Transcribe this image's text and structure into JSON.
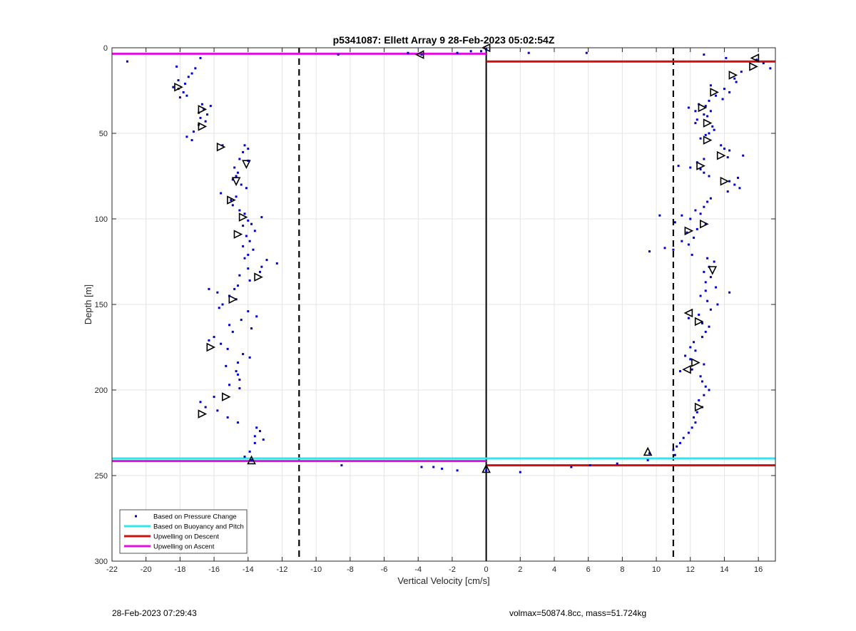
{
  "chart_data": {
    "type": "scatter",
    "title": "p5341087: Ellett Array 9 28-Feb-2023 05:02:54Z",
    "xlabel": "Vertical Velocity [cm/s]",
    "ylabel": "Depth [m]",
    "xlim": [
      -22,
      17
    ],
    "ylim": [
      0,
      300
    ],
    "y_reversed": true,
    "grid": true,
    "xticks": [
      -22,
      -20,
      -18,
      -16,
      -14,
      -12,
      -10,
      -8,
      -6,
      -4,
      -2,
      0,
      2,
      4,
      6,
      8,
      10,
      12,
      14,
      16
    ],
    "yticks": [
      0,
      50,
      100,
      150,
      200,
      250,
      300
    ],
    "legend_position": "bottom-left",
    "legend": [
      {
        "label": "Based on Pressure Change",
        "style": "dots",
        "color": "#0000cc"
      },
      {
        "label": "Based on Buoyancy and Pitch",
        "style": "line",
        "color": "#2ee6ec"
      },
      {
        "label": "Upwelling on Descent",
        "style": "line",
        "color": "#cc1111"
      },
      {
        "label": "Upwelling on Ascent",
        "style": "line",
        "color": "#e010e0"
      }
    ],
    "reference_lines": [
      {
        "x": -11,
        "style": "dashed",
        "color": "#000000"
      },
      {
        "x": 0,
        "style": "solid",
        "color": "#000000"
      },
      {
        "x": 11,
        "style": "dashed",
        "color": "#000000"
      }
    ],
    "series": [
      {
        "name": "Based on Buoyancy and Pitch",
        "kind": "hline",
        "color": "#2ee6ec",
        "segments": [
          {
            "y": 240,
            "x": [
              -22,
              17
            ]
          }
        ]
      },
      {
        "name": "Upwelling on Descent",
        "kind": "hline",
        "color": "#cc1111",
        "segments": [
          {
            "y": 8,
            "x": [
              0,
              17
            ]
          },
          {
            "y": 244,
            "x": [
              0,
              17
            ]
          }
        ]
      },
      {
        "name": "Upwelling on Ascent",
        "kind": "hline",
        "color": "#e010e0",
        "segments": [
          {
            "y": 3.5,
            "x": [
              -22,
              0
            ]
          },
          {
            "y": 241.5,
            "x": [
              -22,
              0
            ]
          }
        ]
      },
      {
        "name": "Based on Pressure Change",
        "kind": "points",
        "color": "#0000cc",
        "points": [
          [
            -21.1,
            8
          ],
          [
            -16.8,
            6
          ],
          [
            -18.2,
            11
          ],
          [
            -17.1,
            12
          ],
          [
            -17.3,
            15
          ],
          [
            -17.5,
            17
          ],
          [
            -18.1,
            19
          ],
          [
            -17.7,
            21
          ],
          [
            -18.4,
            23
          ],
          [
            -18.1,
            24
          ],
          [
            -17.8,
            26
          ],
          [
            -17.6,
            28
          ],
          [
            -18.0,
            29
          ],
          [
            -16.7,
            33
          ],
          [
            -16.2,
            34
          ],
          [
            -16.6,
            36
          ],
          [
            -16.9,
            38
          ],
          [
            -16.4,
            39
          ],
          [
            -16.8,
            41
          ],
          [
            -16.5,
            43
          ],
          [
            -16.9,
            45
          ],
          [
            -17.2,
            49
          ],
          [
            -17.6,
            52
          ],
          [
            -17.3,
            54
          ],
          [
            -15.5,
            57
          ],
          [
            -14.2,
            57
          ],
          [
            -14.0,
            59
          ],
          [
            -14.3,
            61
          ],
          [
            -14.5,
            65
          ],
          [
            -14.0,
            66
          ],
          [
            -14.8,
            70
          ],
          [
            -14.6,
            73
          ],
          [
            -14.7,
            75
          ],
          [
            -14.9,
            77
          ],
          [
            -14.4,
            80
          ],
          [
            -14.1,
            82
          ],
          [
            -15.6,
            85
          ],
          [
            -14.7,
            87
          ],
          [
            -15.0,
            89
          ],
          [
            -14.9,
            92
          ],
          [
            -14.5,
            95
          ],
          [
            -14.2,
            97
          ],
          [
            -13.2,
            99
          ],
          [
            -14.0,
            101
          ],
          [
            -13.8,
            103
          ],
          [
            -14.3,
            104
          ],
          [
            -13.6,
            107
          ],
          [
            -14.1,
            110
          ],
          [
            -13.9,
            113
          ],
          [
            -14.3,
            116
          ],
          [
            -13.7,
            118
          ],
          [
            -14.0,
            121
          ],
          [
            -14.2,
            123
          ],
          [
            -12.9,
            124
          ],
          [
            -12.3,
            126
          ],
          [
            -13.2,
            128
          ],
          [
            -14.0,
            129
          ],
          [
            -13.3,
            131
          ],
          [
            -14.5,
            133
          ],
          [
            -13.9,
            136
          ],
          [
            -14.6,
            139
          ],
          [
            -14.8,
            141
          ],
          [
            -16.3,
            141
          ],
          [
            -15.8,
            143
          ],
          [
            -15.1,
            145
          ],
          [
            -14.7,
            147
          ],
          [
            -15.5,
            150
          ],
          [
            -15.7,
            152
          ],
          [
            -14.0,
            154
          ],
          [
            -13.5,
            157
          ],
          [
            -14.4,
            159
          ],
          [
            -15.1,
            162
          ],
          [
            -13.8,
            164
          ],
          [
            -14.9,
            166
          ],
          [
            -16.0,
            169
          ],
          [
            -16.3,
            171
          ],
          [
            -15.6,
            173
          ],
          [
            -15.2,
            176
          ],
          [
            -14.3,
            179
          ],
          [
            -13.9,
            181
          ],
          [
            -14.6,
            184
          ],
          [
            -15.3,
            186
          ],
          [
            -14.7,
            189
          ],
          [
            -14.6,
            191
          ],
          [
            -14.5,
            194
          ],
          [
            -15.1,
            197
          ],
          [
            -14.5,
            199
          ],
          [
            -16.0,
            204
          ],
          [
            -16.8,
            207
          ],
          [
            -16.5,
            210
          ],
          [
            -15.8,
            212
          ],
          [
            -15.2,
            216
          ],
          [
            -14.6,
            219
          ],
          [
            -13.5,
            222
          ],
          [
            -13.3,
            224
          ],
          [
            -13.6,
            227
          ],
          [
            -13.1,
            229
          ],
          [
            -13.6,
            231
          ],
          [
            -13.9,
            236
          ],
          [
            -14.2,
            239
          ],
          [
            -13.8,
            241
          ],
          [
            -8.7,
            4
          ],
          [
            -4.6,
            3
          ],
          [
            -3.8,
            4
          ],
          [
            -1.7,
            3
          ],
          [
            -0.9,
            2
          ],
          [
            -0.3,
            2
          ],
          [
            0,
            1
          ],
          [
            2.5,
            3
          ],
          [
            5.9,
            3
          ],
          [
            -8.5,
            244
          ],
          [
            -3.8,
            245
          ],
          [
            -3.1,
            245
          ],
          [
            -2.6,
            246
          ],
          [
            -1.7,
            247
          ],
          [
            0.0,
            247
          ],
          [
            2.0,
            248
          ],
          [
            5.0,
            245
          ],
          [
            6.1,
            244
          ],
          [
            7.7,
            243
          ],
          [
            9.5,
            241
          ],
          [
            12.8,
            4
          ],
          [
            14.1,
            6
          ],
          [
            15.9,
            7
          ],
          [
            16.3,
            9
          ],
          [
            16.7,
            12
          ],
          [
            15.0,
            14
          ],
          [
            14.6,
            18
          ],
          [
            14.7,
            20
          ],
          [
            13.2,
            22
          ],
          [
            14.0,
            24
          ],
          [
            14.3,
            26
          ],
          [
            13.5,
            28
          ],
          [
            13.9,
            30
          ],
          [
            13.1,
            31
          ],
          [
            12.5,
            33
          ],
          [
            12.9,
            34
          ],
          [
            11.9,
            35
          ],
          [
            12.3,
            37
          ],
          [
            13.2,
            37
          ],
          [
            12.8,
            39
          ],
          [
            13.0,
            40
          ],
          [
            12.4,
            42
          ],
          [
            12.3,
            44
          ],
          [
            13.3,
            46
          ],
          [
            13.4,
            48
          ],
          [
            13.1,
            50
          ],
          [
            12.9,
            51
          ],
          [
            12.6,
            53
          ],
          [
            13.8,
            57
          ],
          [
            14.0,
            59
          ],
          [
            14.3,
            60
          ],
          [
            15.1,
            63
          ],
          [
            14.2,
            64
          ],
          [
            12.8,
            65
          ],
          [
            12.4,
            67
          ],
          [
            11.3,
            69
          ],
          [
            12.0,
            70
          ],
          [
            12.6,
            71
          ],
          [
            12.8,
            73
          ],
          [
            13.1,
            75
          ],
          [
            14.8,
            76
          ],
          [
            14.3,
            78
          ],
          [
            14.6,
            80
          ],
          [
            14.9,
            82
          ],
          [
            14.2,
            84
          ],
          [
            13.2,
            88
          ],
          [
            13.0,
            90
          ],
          [
            12.8,
            93
          ],
          [
            12.3,
            95
          ],
          [
            12.6,
            97
          ],
          [
            10.2,
            98
          ],
          [
            11.5,
            98
          ],
          [
            12.0,
            100
          ],
          [
            11.1,
            102
          ],
          [
            12.9,
            103
          ],
          [
            12.4,
            106
          ],
          [
            11.8,
            108
          ],
          [
            12.2,
            111
          ],
          [
            11.5,
            113
          ],
          [
            11.9,
            115
          ],
          [
            10.5,
            117
          ],
          [
            11.0,
            118
          ],
          [
            9.6,
            119
          ],
          [
            12.1,
            121
          ],
          [
            13.0,
            123
          ],
          [
            13.4,
            125
          ],
          [
            13.1,
            128
          ],
          [
            12.8,
            131
          ],
          [
            13.2,
            134
          ],
          [
            12.9,
            137
          ],
          [
            13.5,
            140
          ],
          [
            12.9,
            142
          ],
          [
            14.3,
            143
          ],
          [
            12.6,
            145
          ],
          [
            13.0,
            148
          ],
          [
            13.6,
            150
          ],
          [
            13.2,
            153
          ],
          [
            12.5,
            156
          ],
          [
            11.9,
            158
          ],
          [
            12.7,
            161
          ],
          [
            13.1,
            163
          ],
          [
            12.9,
            166
          ],
          [
            12.7,
            169
          ],
          [
            12.2,
            172
          ],
          [
            12.0,
            175
          ],
          [
            12.3,
            177
          ],
          [
            11.7,
            180
          ],
          [
            12.0,
            182
          ],
          [
            12.8,
            185
          ],
          [
            12.1,
            188
          ],
          [
            11.4,
            189
          ],
          [
            12.6,
            192
          ],
          [
            12.7,
            195
          ],
          [
            12.9,
            198
          ],
          [
            13.1,
            200
          ],
          [
            12.8,
            203
          ],
          [
            12.5,
            206
          ],
          [
            12.7,
            210
          ],
          [
            12.4,
            213
          ],
          [
            12.2,
            216
          ],
          [
            12.3,
            219
          ],
          [
            12.1,
            222
          ],
          [
            11.9,
            225
          ],
          [
            11.6,
            228
          ],
          [
            11.4,
            231
          ],
          [
            11.2,
            233
          ],
          [
            11.0,
            235
          ],
          [
            9.6,
            237
          ],
          [
            11.1,
            238
          ]
        ]
      },
      {
        "name": "",
        "kind": "markers",
        "marker": "triangle-right",
        "color": "#000000",
        "points": [
          [
            -18.1,
            23
          ],
          [
            -16.7,
            36
          ],
          [
            -16.7,
            46
          ],
          [
            -15.6,
            58
          ],
          [
            -15.0,
            89
          ],
          [
            -14.3,
            99
          ],
          [
            -14.6,
            109
          ],
          [
            -13.4,
            134
          ],
          [
            -14.9,
            147
          ],
          [
            -16.2,
            175
          ],
          [
            -15.3,
            204
          ],
          [
            -16.7,
            214
          ],
          [
            15.7,
            11
          ],
          [
            14.5,
            16
          ],
          [
            13.4,
            26
          ],
          [
            12.7,
            35
          ],
          [
            13.0,
            44
          ],
          [
            13.0,
            54
          ],
          [
            13.8,
            63
          ],
          [
            12.6,
            69
          ],
          [
            14.0,
            78
          ],
          [
            12.8,
            103
          ],
          [
            11.9,
            107
          ],
          [
            12.5,
            160
          ],
          [
            12.3,
            184
          ],
          [
            12.5,
            210
          ]
        ]
      },
      {
        "name": "",
        "kind": "markers",
        "marker": "triangle-left",
        "color": "#000000",
        "points": [
          [
            -3.9,
            4
          ],
          [
            0,
            0
          ],
          [
            15.8,
            6
          ],
          [
            11.9,
            155
          ],
          [
            11.8,
            188
          ]
        ]
      },
      {
        "name": "",
        "kind": "markers",
        "marker": "triangle-down",
        "color": "#000000",
        "points": [
          [
            -14.1,
            68
          ],
          [
            -14.7,
            78
          ],
          [
            13.3,
            130
          ]
        ]
      },
      {
        "name": "",
        "kind": "markers",
        "marker": "triangle-up",
        "color": "#000000",
        "points": [
          [
            -13.8,
            241
          ],
          [
            9.5,
            236
          ],
          [
            0.0,
            246
          ]
        ]
      }
    ]
  },
  "footer": {
    "left": "28-Feb-2023 07:29:43",
    "right": "volmax=50874.8cc, mass=51.724kg"
  }
}
